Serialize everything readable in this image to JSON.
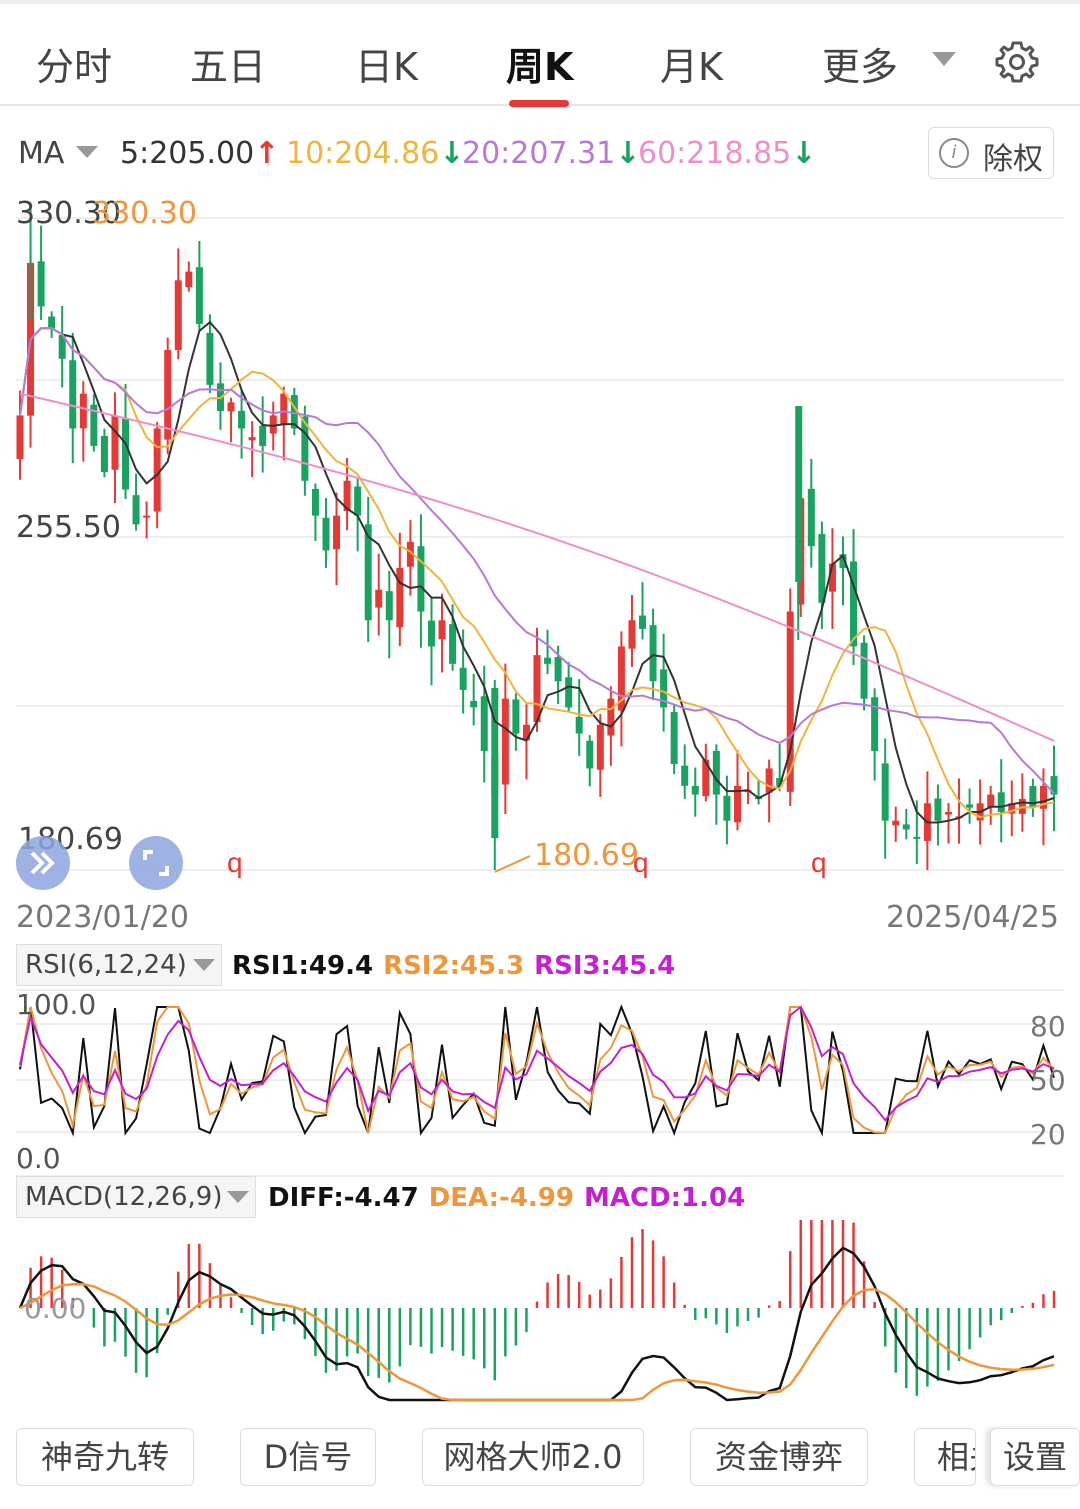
{
  "tabs": [
    {
      "label": "分时"
    },
    {
      "label": "五日"
    },
    {
      "label": "日K"
    },
    {
      "label": "周K",
      "active": true
    },
    {
      "label": "月K"
    },
    {
      "label": "更多"
    }
  ],
  "ma": {
    "label": "MA",
    "ma5": "5:205.00",
    "ma10": "10:204.86",
    "ma20": "20:207.31",
    "ma60": "60:218.85",
    "chuquan": "除权"
  },
  "colors": {
    "up": "#e53935",
    "down": "#1aa260",
    "ma5": "#333333",
    "ma10": "#f0b43c",
    "ma20": "#b57ad8",
    "ma60": "#ee8fc7",
    "rsi1": "#111111",
    "rsi2": "#f0963a",
    "rsi3": "#c41fd0",
    "diff": "#111111",
    "dea": "#f0963a",
    "macd": "#c41fd0"
  },
  "chart_data": [
    {
      "type": "candlestick",
      "title": "周K",
      "y_labels": [
        "330.30",
        "255.50",
        "180.69"
      ],
      "ylim": [
        180.69,
        330.3
      ],
      "high_annotation": "330.30",
      "low_annotation": "180.69",
      "x_start": "2023/01/20",
      "x_end": "2025/04/25",
      "close": [
        285,
        320,
        310,
        305,
        298,
        282,
        290,
        278,
        272,
        285,
        268,
        260,
        262,
        282,
        300,
        316,
        318,
        306,
        292,
        286,
        288,
        282,
        280,
        278,
        285,
        290,
        282,
        270,
        262,
        254,
        262,
        270,
        262,
        238,
        245,
        238,
        250,
        256,
        240,
        232,
        238,
        228,
        222,
        218,
        208,
        198,
        220,
        212,
        214,
        230,
        228,
        224,
        218,
        212,
        204,
        214,
        220,
        232,
        238,
        236,
        224,
        218,
        205,
        200,
        198,
        206,
        198,
        192,
        200,
        199,
        197,
        204,
        200,
        240,
        266,
        255,
        242,
        251,
        250,
        232,
        220,
        208,
        192,
        192,
        190,
        188,
        196,
        192,
        194,
        193,
        195,
        196,
        198,
        194,
        196,
        197,
        195,
        200,
        198
      ],
      "ma_series": [
        "MA5",
        "MA10",
        "MA20",
        "MA60"
      ]
    },
    {
      "type": "line",
      "title": "RSI(6,12,24)",
      "y_labels": [
        "100.0",
        "0.0"
      ],
      "right_labels": [
        "80",
        "50",
        "20"
      ],
      "ylim": [
        0,
        100
      ],
      "series": [
        {
          "name": "RSI1",
          "last": "RSI1:49.4"
        },
        {
          "name": "RSI2",
          "last": "RSI2:45.3"
        },
        {
          "name": "RSI3",
          "last": "RSI3:45.4"
        }
      ]
    },
    {
      "type": "bar",
      "title": "MACD(12,26,9)",
      "y_label": "0.00",
      "series": [
        {
          "name": "DIFF",
          "last": "DIFF:-4.47"
        },
        {
          "name": "DEA",
          "last": "DEA:-4.99"
        },
        {
          "name": "MACD",
          "last": "MACD:1.04"
        }
      ]
    }
  ],
  "rsi": {
    "box_label": "RSI(6,12,24)",
    "r1": "RSI1:49.4",
    "r2": "RSI2:45.3",
    "r3": "RSI3:45.4"
  },
  "macd": {
    "box_label": "MACD(12,26,9)",
    "diff": "DIFF:-4.47",
    "dea": "DEA:-4.99",
    "macd": "MACD:1.04"
  },
  "bottom_buttons": [
    {
      "label": "神奇九转"
    },
    {
      "label": "D信号"
    },
    {
      "label": "网格大师2.0"
    },
    {
      "label": "资金博弈"
    },
    {
      "label": "相关"
    },
    {
      "label": "设置"
    }
  ]
}
